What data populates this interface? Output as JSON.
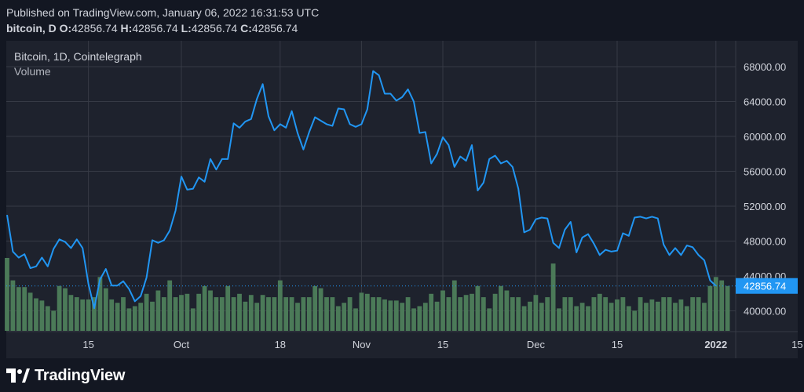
{
  "header": {
    "published": "Published on TradingView.com, January 06, 2022 16:31:53 UTC",
    "symbol": "bitcoin, D",
    "o_label": "O:",
    "o_value": "42856.74",
    "h_label": "H:",
    "h_value": "42856.74",
    "l_label": "L:",
    "l_value": "42856.74",
    "c_label": "C:",
    "c_value": "42856.74"
  },
  "legend": {
    "series_title": "Bitcoin, 1D, Cointelegraph",
    "volume_label": "Volume"
  },
  "footer": {
    "brand": "TradingView"
  },
  "colors": {
    "background": "#131722",
    "pane": "#1e222d",
    "line": "#2196f3",
    "volume": "#4b7a58",
    "grid": "#363a45",
    "text": "#d1d4dc",
    "price_label": "#2196f3"
  },
  "chart_data": {
    "type": "line",
    "title": "Bitcoin, 1D, Cointelegraph",
    "xlabel": "",
    "ylabel": "",
    "ylim": [
      38000,
      70000
    ],
    "y_ticks": [
      "40000.00",
      "44000.00",
      "48000.00",
      "52000.00",
      "56000.00",
      "60000.00",
      "64000.00",
      "68000.00"
    ],
    "x_tick_labels": [
      "15",
      "Oct",
      "18",
      "Nov",
      "15",
      "Dec",
      "15",
      "2022",
      "15"
    ],
    "x_tick_days": [
      14,
      30,
      47,
      61,
      75,
      91,
      105,
      122,
      136
    ],
    "last_value_label": "42856.74",
    "last_value": 42856.74,
    "series": [
      {
        "name": "Bitcoin",
        "start_day": 0,
        "values": [
          51000,
          46800,
          46100,
          46500,
          44900,
          45100,
          46100,
          45100,
          47100,
          48200,
          47900,
          47200,
          48200,
          47200,
          43100,
          40300,
          43600,
          44800,
          42900,
          42900,
          43400,
          42500,
          41100,
          41700,
          43800,
          48100,
          47800,
          48100,
          49200,
          51500,
          55400,
          53900,
          54000,
          55300,
          54800,
          57400,
          56200,
          57400,
          57400,
          61500,
          61000,
          61700,
          62000,
          64300,
          66000,
          62300,
          60700,
          61400,
          61000,
          62900,
          60400,
          58500,
          60500,
          62200,
          61800,
          61400,
          61200,
          63200,
          63100,
          61400,
          61100,
          61400,
          63100,
          67500,
          67000,
          64900,
          64900,
          64100,
          64500,
          65400,
          64000,
          60400,
          60500,
          56900,
          58000,
          59900,
          59000,
          56500,
          57700,
          57200,
          59000,
          53800,
          54700,
          57400,
          57800,
          56900,
          57200,
          56500,
          54000,
          49000,
          49300,
          50500,
          50700,
          50600,
          47800,
          47200,
          49300,
          50200,
          46700,
          48400,
          48800,
          47700,
          46400,
          47000,
          46800,
          46900,
          48900,
          48600,
          50700,
          50800,
          50600,
          50800,
          50600,
          47600,
          46400,
          47200,
          46400,
          47500,
          47300,
          46400,
          45800,
          43500,
          42856.74
        ]
      },
      {
        "name": "Volume",
        "start_day": 0,
        "values": [
          65,
          45,
          39,
          39,
          34,
          29,
          27,
          22,
          18,
          40,
          38,
          32,
          30,
          28,
          28,
          30,
          48,
          38,
          28,
          25,
          30,
          20,
          22,
          25,
          33,
          26,
          36,
          30,
          45,
          30,
          32,
          33,
          20,
          33,
          40,
          36,
          30,
          30,
          40,
          30,
          33,
          26,
          32,
          25,
          32,
          30,
          30,
          45,
          30,
          30,
          25,
          30,
          30,
          40,
          38,
          30,
          30,
          22,
          25,
          30,
          20,
          34,
          33,
          30,
          30,
          28,
          27,
          27,
          25,
          30,
          20,
          22,
          25,
          33,
          26,
          36,
          30,
          45,
          30,
          32,
          33,
          40,
          30,
          20,
          33,
          40,
          36,
          30,
          30,
          22,
          26,
          32,
          25,
          30,
          60,
          20,
          30,
          30,
          22,
          25,
          22,
          30,
          33,
          30,
          25,
          28,
          30,
          22,
          18,
          30,
          25,
          28,
          26,
          30,
          30,
          25,
          28,
          22,
          30,
          30,
          25,
          40,
          48,
          45,
          40
        ]
      }
    ]
  }
}
